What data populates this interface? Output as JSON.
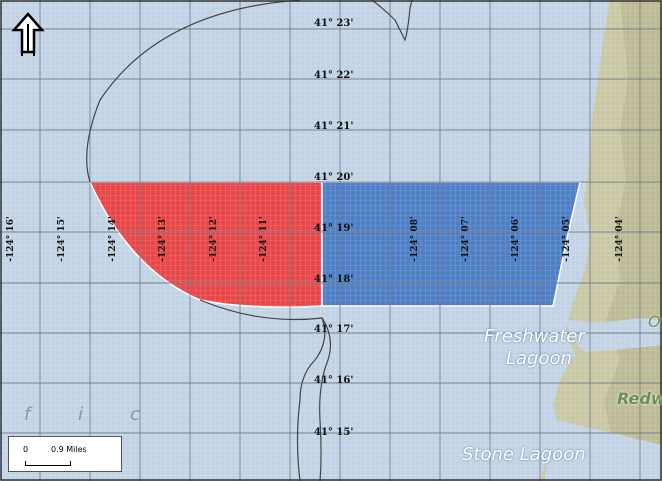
{
  "map": {
    "latitude_labels": [
      "41° 23'",
      "41° 22'",
      "41° 21'",
      "41° 20'",
      "41° 19'",
      "41° 18'",
      "41° 17'",
      "41° 16'",
      "41° 15'"
    ],
    "longitude_labels": [
      "-124° 16'",
      "-124° 15'",
      "-124° 14'",
      "-124° 13'",
      "-124° 12'",
      "-124° 11'",
      "-124° 08'",
      "-124° 07'",
      "-124° 06'",
      "-124° 05'",
      "-124° 04'"
    ],
    "place_labels": {
      "freshwater": "Freshwater",
      "lagoon": "Lagoon",
      "stone_lagoon": "Stone Lagoon",
      "redw": "Redw",
      "o": "O"
    },
    "ocean_letters": [
      "f",
      "i",
      "c"
    ],
    "scale_bar": {
      "start": "0",
      "end_label": "0.9 Miles"
    },
    "north_arrow": "north-arrow-icon",
    "colors": {
      "red_zone": "#e8484a",
      "blue_zone": "#4f7fc4",
      "ocean": "#c3d3e6",
      "land": "#c8c6a2",
      "grid": "#8a8f98"
    }
  }
}
